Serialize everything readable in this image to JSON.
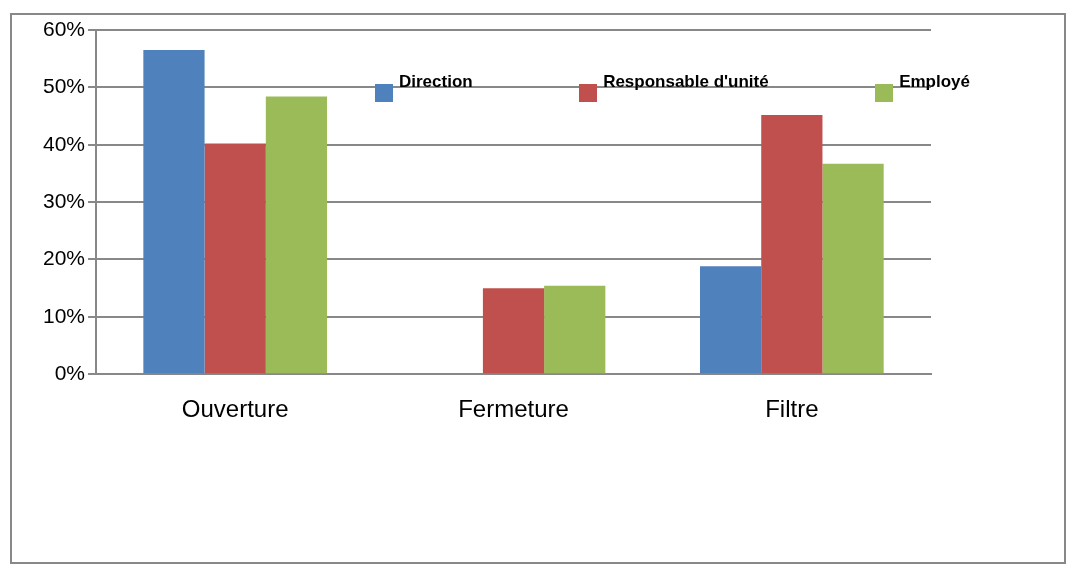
{
  "chart_data": {
    "type": "bar",
    "categories": [
      "Ouverture",
      "Fermeture",
      "Filtre"
    ],
    "series": [
      {
        "name": "Direction",
        "color": "#4f81bd",
        "values": [
          56.5,
          0,
          18.8
        ]
      },
      {
        "name": "Responsable d'unité",
        "color": "#c0504d",
        "values": [
          40.2,
          15,
          45.2
        ]
      },
      {
        "name": "Employé",
        "color": "#9bbb59",
        "values": [
          48.4,
          15.4,
          36.7
        ]
      }
    ],
    "ylim": [
      0,
      60
    ],
    "yticks": [
      {
        "value": 0,
        "label": "0%"
      },
      {
        "value": 10,
        "label": "10%"
      },
      {
        "value": 20,
        "label": "20%"
      },
      {
        "value": 30,
        "label": "30%"
      },
      {
        "value": 40,
        "label": "40%"
      },
      {
        "value": 50,
        "label": "50%"
      },
      {
        "value": 60,
        "label": "60%"
      }
    ],
    "grid": "y",
    "legend": "top right"
  }
}
